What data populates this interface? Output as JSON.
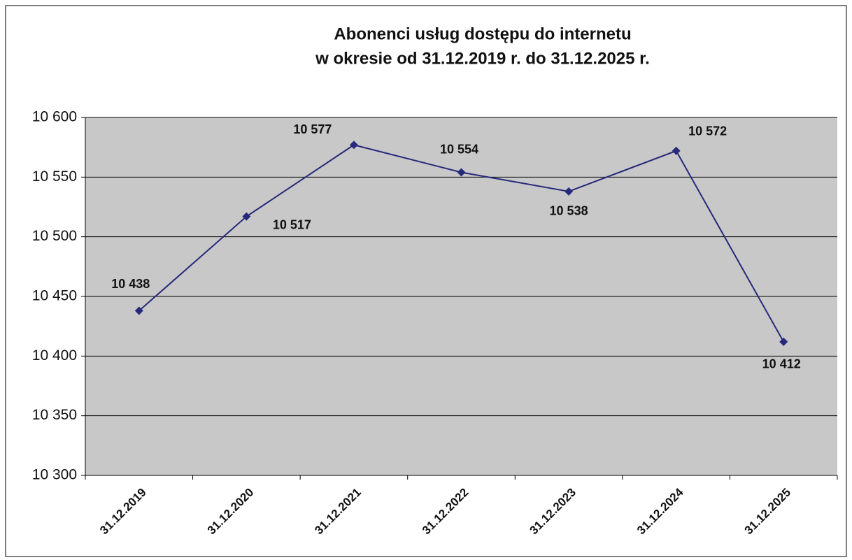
{
  "chart_data": {
    "type": "line",
    "title": [
      "Abonenci usług dostępu do internetu",
      "w okresie od 31.12.2019 r. do 31.12.2025 r."
    ],
    "categories": [
      "31.12.2019",
      "31.12.2020",
      "31.12.2021",
      "31.12.2022",
      "31.12.2023",
      "31.12.2024",
      "31.12.2025"
    ],
    "series": [
      {
        "color": "#27297a",
        "values": [
          10438,
          10517,
          10577,
          10554,
          10538,
          10572,
          10412
        ],
        "value_labels": [
          "10 438",
          "10 517",
          "10 577",
          "10 554",
          "10 538",
          "10 572",
          "10 412"
        ]
      }
    ],
    "ylim": [
      10300,
      10600
    ],
    "yticks": [
      {
        "value": 10300,
        "label": "10 300"
      },
      {
        "value": 10350,
        "label": "10 350"
      },
      {
        "value": 10400,
        "label": "10 400"
      },
      {
        "value": 10450,
        "label": "10 450"
      },
      {
        "value": 10500,
        "label": "10 500"
      },
      {
        "value": 10550,
        "label": "10 550"
      },
      {
        "value": 10600,
        "label": "10 600"
      }
    ],
    "grid": true
  }
}
